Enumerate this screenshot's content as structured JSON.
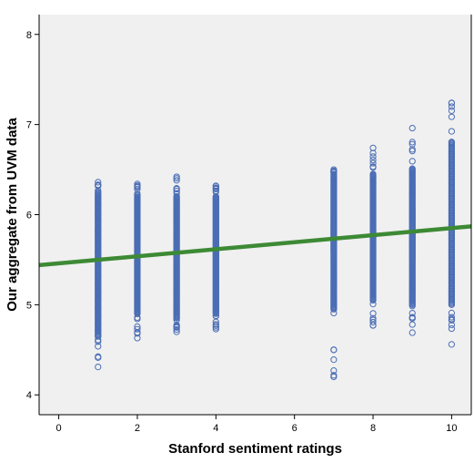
{
  "chart_data": {
    "type": "scatter",
    "xlabel": "Stanford sentiment ratings",
    "ylabel": "Our aggregate from UVM data",
    "xlim": [
      -0.5,
      10.5
    ],
    "ylim": [
      3.78,
      8.22
    ],
    "x_ticks": [
      0,
      2,
      4,
      6,
      8,
      10
    ],
    "y_ticks": [
      4,
      5,
      6,
      7,
      8
    ],
    "grid": false,
    "legend": "none",
    "colors": {
      "points": "#4a6db4",
      "fit_line": "#3d8a35",
      "plot_bg": "#f0f0f0"
    },
    "points_summary": [
      {
        "x": 1,
        "y_min": 4.31,
        "y_max": 6.36,
        "dense_low": 4.65,
        "dense_high": 6.25
      },
      {
        "x": 2,
        "y_min": 4.63,
        "y_max": 6.34,
        "dense_low": 4.9,
        "dense_high": 6.2
      },
      {
        "x": 3,
        "y_min": 4.7,
        "y_max": 6.42,
        "dense_low": 4.85,
        "dense_high": 6.2
      },
      {
        "x": 4,
        "y_min": 4.73,
        "y_max": 6.32,
        "dense_low": 4.9,
        "dense_high": 6.2
      },
      {
        "x": 7,
        "y_min": 4.2,
        "y_max": 6.5,
        "dense_low": 4.95,
        "dense_high": 6.45
      },
      {
        "x": 8,
        "y_min": 4.77,
        "y_max": 6.74,
        "dense_low": 5.05,
        "dense_high": 6.45
      },
      {
        "x": 9,
        "y_min": 4.69,
        "y_max": 6.96,
        "dense_low": 5.0,
        "dense_high": 6.5
      },
      {
        "x": 10,
        "y_min": 4.56,
        "y_max": 7.24,
        "dense_low": 5.0,
        "dense_high": 6.8
      }
    ],
    "fit_line": {
      "x": [
        -0.5,
        10.5
      ],
      "y": [
        5.44,
        5.87
      ]
    }
  }
}
